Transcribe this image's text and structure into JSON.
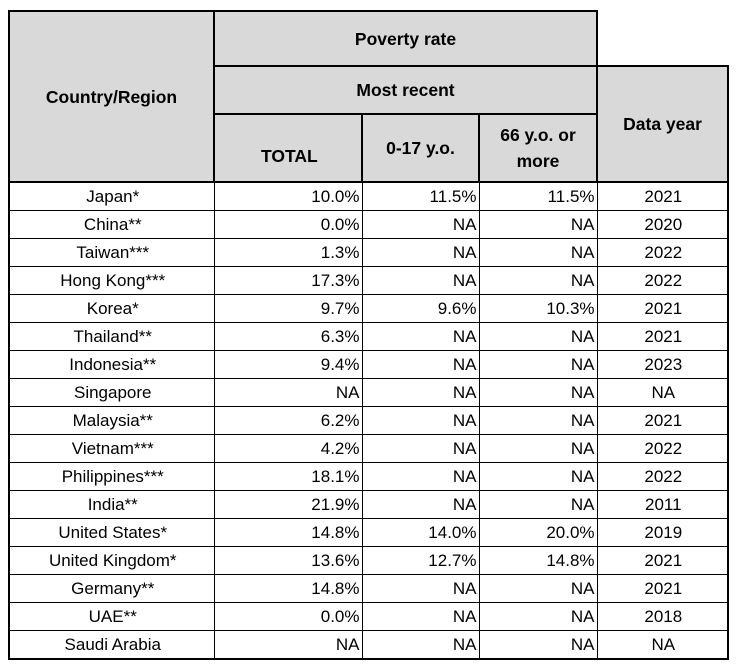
{
  "header": {
    "country_region": "Country/Region",
    "poverty_rate": "Poverty rate",
    "most_recent": "Most recent",
    "total": "TOTAL",
    "age_0_17": "0-17 y.o.",
    "age_66_plus": "66 y.o. or more",
    "data_year": "Data year"
  },
  "rows": [
    {
      "country": "Japan*",
      "total": "10.0%",
      "age_0_17": "11.5%",
      "age_66_plus": "11.5%",
      "year": "2021"
    },
    {
      "country": "China**",
      "total": "0.0%",
      "age_0_17": "NA",
      "age_66_plus": "NA",
      "year": "2020"
    },
    {
      "country": "Taiwan***",
      "total": "1.3%",
      "age_0_17": "NA",
      "age_66_plus": "NA",
      "year": "2022"
    },
    {
      "country": "Hong Kong***",
      "total": "17.3%",
      "age_0_17": "NA",
      "age_66_plus": "NA",
      "year": "2022"
    },
    {
      "country": "Korea*",
      "total": "9.7%",
      "age_0_17": "9.6%",
      "age_66_plus": "10.3%",
      "year": "2021"
    },
    {
      "country": "Thailand**",
      "total": "6.3%",
      "age_0_17": "NA",
      "age_66_plus": "NA",
      "year": "2021"
    },
    {
      "country": "Indonesia**",
      "total": "9.4%",
      "age_0_17": "NA",
      "age_66_plus": "NA",
      "year": "2023"
    },
    {
      "country": "Singapore",
      "total": "NA",
      "age_0_17": "NA",
      "age_66_plus": "NA",
      "year": "NA"
    },
    {
      "country": "Malaysia**",
      "total": "6.2%",
      "age_0_17": "NA",
      "age_66_plus": "NA",
      "year": "2021"
    },
    {
      "country": "Vietnam***",
      "total": "4.2%",
      "age_0_17": "NA",
      "age_66_plus": "NA",
      "year": "2022"
    },
    {
      "country": "Philippines***",
      "total": "18.1%",
      "age_0_17": "NA",
      "age_66_plus": "NA",
      "year": "2022"
    },
    {
      "country": "India**",
      "total": "21.9%",
      "age_0_17": "NA",
      "age_66_plus": "NA",
      "year": "2011"
    },
    {
      "country": "United States*",
      "total": "14.8%",
      "age_0_17": "14.0%",
      "age_66_plus": "20.0%",
      "year": "2019"
    },
    {
      "country": "United Kingdom*",
      "total": "13.6%",
      "age_0_17": "12.7%",
      "age_66_plus": "14.8%",
      "year": "2021"
    },
    {
      "country": "Germany**",
      "total": "14.8%",
      "age_0_17": "NA",
      "age_66_plus": "NA",
      "year": "2021"
    },
    {
      "country": "UAE**",
      "total": "0.0%",
      "age_0_17": "NA",
      "age_66_plus": "NA",
      "year": "2018"
    },
    {
      "country": "Saudi Arabia",
      "total": "NA",
      "age_0_17": "NA",
      "age_66_plus": "NA",
      "year": "NA"
    }
  ]
}
